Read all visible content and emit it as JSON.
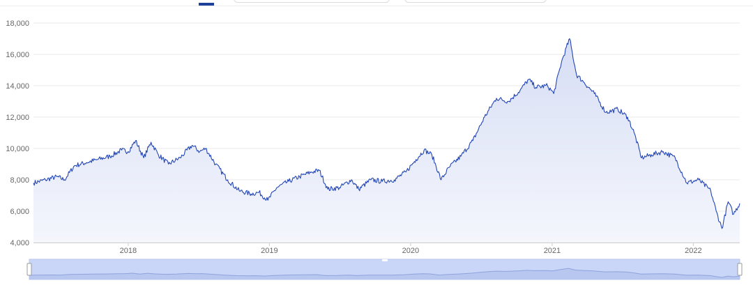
{
  "chart_data": {
    "type": "area",
    "title": "",
    "xlabel": "",
    "ylabel": "",
    "ylim": [
      4000,
      18000
    ],
    "yticks": [
      "4,000",
      "6,000",
      "8,000",
      "10,000",
      "12,000",
      "14,000",
      "16,000",
      "18,000"
    ],
    "xticks": [
      "2018",
      "2019",
      "2020",
      "2021",
      "2022"
    ],
    "xlim": [
      "2017-05-01",
      "2022-05-01"
    ],
    "grid": "horizontal",
    "colors": {
      "line": "#2346b5",
      "fill": "#e3e8f7",
      "grid": "#e8e8e8",
      "navigator": "#c9d6f7"
    },
    "series": [
      {
        "values": [
          [
            "2017-05-01",
            7800
          ],
          [
            "2017-06-01",
            8000
          ],
          [
            "2017-07-01",
            8200
          ],
          [
            "2017-07-20",
            8000
          ],
          [
            "2017-08-15",
            8900
          ],
          [
            "2017-09-15",
            9100
          ],
          [
            "2017-10-15",
            9300
          ],
          [
            "2017-11-15",
            9500
          ],
          [
            "2017-12-15",
            9900
          ],
          [
            "2018-01-01",
            9800
          ],
          [
            "2018-01-20",
            10500
          ],
          [
            "2018-02-10",
            9400
          ],
          [
            "2018-03-01",
            10400
          ],
          [
            "2018-03-20",
            9600
          ],
          [
            "2018-04-15",
            9000
          ],
          [
            "2018-05-15",
            9400
          ],
          [
            "2018-06-15",
            10200
          ],
          [
            "2018-07-05",
            9800
          ],
          [
            "2018-07-20",
            10000
          ],
          [
            "2018-08-15",
            9000
          ],
          [
            "2018-09-15",
            8000
          ],
          [
            "2018-10-15",
            7300
          ],
          [
            "2018-11-15",
            7100
          ],
          [
            "2018-12-05",
            7200
          ],
          [
            "2018-12-28",
            6700
          ],
          [
            "2019-01-20",
            7500
          ],
          [
            "2019-02-20",
            7900
          ],
          [
            "2019-03-20",
            8200
          ],
          [
            "2019-04-20",
            8500
          ],
          [
            "2019-05-10",
            8600
          ],
          [
            "2019-06-01",
            7400
          ],
          [
            "2019-07-01",
            7500
          ],
          [
            "2019-08-01",
            8000
          ],
          [
            "2019-08-20",
            7400
          ],
          [
            "2019-09-20",
            8000
          ],
          [
            "2019-10-20",
            7900
          ],
          [
            "2019-11-20",
            8000
          ],
          [
            "2019-12-20",
            8500
          ],
          [
            "2020-01-15",
            9300
          ],
          [
            "2020-02-05",
            9900
          ],
          [
            "2020-02-25",
            9600
          ],
          [
            "2020-03-20",
            8000
          ],
          [
            "2020-04-10",
            8800
          ],
          [
            "2020-05-10",
            9500
          ],
          [
            "2020-06-10",
            10500
          ],
          [
            "2020-07-10",
            12000
          ],
          [
            "2020-08-10",
            13200
          ],
          [
            "2020-09-10",
            13000
          ],
          [
            "2020-10-10",
            13700
          ],
          [
            "2020-11-01",
            14400
          ],
          [
            "2020-11-20",
            13900
          ],
          [
            "2020-12-20",
            14000
          ],
          [
            "2021-01-05",
            13500
          ],
          [
            "2021-01-25",
            15500
          ],
          [
            "2021-02-15",
            17000
          ],
          [
            "2021-03-05",
            14700
          ],
          [
            "2021-03-25",
            14200
          ],
          [
            "2021-04-20",
            13500
          ],
          [
            "2021-05-20",
            12300
          ],
          [
            "2021-06-20",
            12500
          ],
          [
            "2021-07-15",
            12000
          ],
          [
            "2021-08-01",
            11000
          ],
          [
            "2021-08-20",
            9400
          ],
          [
            "2021-09-15",
            9600
          ],
          [
            "2021-10-15",
            9800
          ],
          [
            "2021-11-15",
            9400
          ],
          [
            "2021-12-15",
            7800
          ],
          [
            "2022-01-15",
            8000
          ],
          [
            "2022-02-15",
            7300
          ],
          [
            "2022-03-01",
            6000
          ],
          [
            "2022-03-16",
            4900
          ],
          [
            "2022-04-01",
            6600
          ],
          [
            "2022-04-15",
            5800
          ],
          [
            "2022-05-01",
            6500
          ]
        ]
      }
    ]
  }
}
